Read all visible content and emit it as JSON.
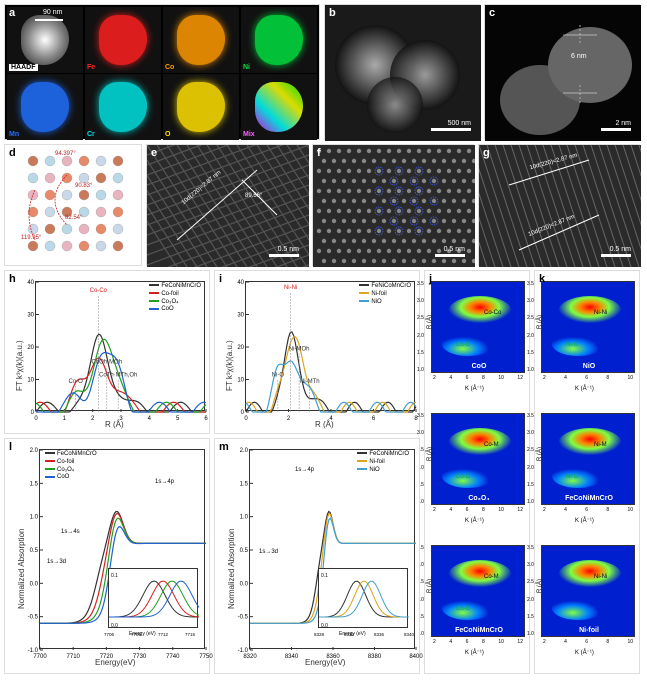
{
  "panels": {
    "a": {
      "label": "a",
      "scale": "90 nm",
      "sublabels": [
        "HAADF",
        "Fe",
        "Co",
        "Ni",
        "Mn",
        "Cr",
        "O",
        "Mix"
      ],
      "colors": [
        "#ffffff",
        "#ff2020",
        "#ff9a00",
        "#00e040",
        "#2070ff",
        "#00e0e0",
        "#ffe000",
        "#ff60ff"
      ]
    },
    "b": {
      "label": "b",
      "scale": "500 nm"
    },
    "c": {
      "label": "c",
      "scale": "2 nm",
      "annotation": "6 nm"
    },
    "d": {
      "label": "d",
      "angles": [
        "94.397°",
        "90.83°",
        "82.54°",
        "119.95°"
      ],
      "atom_colors": [
        "#c97a5a",
        "#b9d9e6",
        "#e8b4c0",
        "#e88a6a",
        "#c9d8e8"
      ]
    },
    "e": {
      "label": "e",
      "scale": "0.5 nm",
      "d_spacing": "10d(220)=2.87 nm",
      "angle": "89.56°"
    },
    "f": {
      "label": "f",
      "scale": "0.5 nm"
    },
    "g": {
      "label": "g",
      "scale": "0.5 nm",
      "d1": "10d(220)=2.87 nm",
      "d2": "10d(220)=2.87 nm"
    },
    "h": {
      "label": "h",
      "ylabel": "FT k³χ(k)(a.u.)",
      "xlabel": "R (Å)",
      "xlim": [
        0,
        6
      ],
      "ylim": [
        0,
        40
      ],
      "xtick_step": 1,
      "ytick_step": 10,
      "peaks": {
        "Co-Co": [
          2.2,
          36
        ],
        "Co-O": [
          1.4,
          8
        ],
        "CoOh·MOh": [
          2.5,
          14
        ],
        "CoTh·MTh,Oh": [
          2.9,
          10
        ]
      },
      "series": [
        {
          "name": "FeCoNiMnCrO",
          "color": "#333333"
        },
        {
          "name": "Co-foil",
          "color": "#d62020"
        },
        {
          "name": "Co₃O₄",
          "color": "#20a020"
        },
        {
          "name": "CoO",
          "color": "#2060d0"
        }
      ]
    },
    "i": {
      "label": "i",
      "ylabel": "FT k³χ(k)(a.u.)",
      "xlabel": "R (Å)",
      "xlim": [
        0,
        8
      ],
      "ylim": [
        0,
        40
      ],
      "xtick_step": 2,
      "ytick_step": 10,
      "peaks": {
        "Ni-Ni": [
          2.1,
          37
        ],
        "Ni-MOh": [
          2.5,
          18
        ],
        "Ni-O": [
          1.5,
          10
        ],
        "Ni-MTh": [
          3.0,
          8
        ]
      },
      "series": [
        {
          "name": "FeNiCoMnCrO",
          "color": "#333333"
        },
        {
          "name": "Ni-foil",
          "color": "#daa520"
        },
        {
          "name": "NiO",
          "color": "#40a0d0"
        }
      ]
    },
    "j": {
      "label": "j",
      "sub": [
        "CoO",
        "Co₃O₄",
        "FeCoNiMnCrO"
      ],
      "peak_labels": [
        [
          "Co-Co",
          "Co-O"
        ],
        [
          "Co-M",
          "Co-O"
        ],
        [
          "Co-M",
          "Co-O"
        ]
      ],
      "xlabel": "K (Å⁻¹)",
      "ylabel": "R (Å)",
      "xlim": [
        2,
        12
      ],
      "ylim": [
        1.0,
        3.5
      ]
    },
    "k": {
      "label": "k",
      "sub": [
        "NiO",
        "FeCoNiMnCrO",
        "Ni-foil"
      ],
      "peak_labels": [
        [
          "Ni-Ni",
          "Ni-O"
        ],
        [
          "Ni-M",
          "Ni-O"
        ],
        [
          "Ni-Ni",
          ""
        ]
      ],
      "xlabel": "K (Å⁻¹)",
      "ylabel": "R (Å)",
      "xlim": [
        2,
        10
      ],
      "ylim": [
        1.0,
        3.5
      ]
    },
    "l": {
      "label": "l",
      "ylabel": "Normalized Absorption",
      "xlabel": "Energy(eV)",
      "xlim": [
        7700,
        7750
      ],
      "ylim": [
        -1.0,
        2.0
      ],
      "xtick_step": 10,
      "ytick_step": 0.5,
      "anno": [
        "1s→3d",
        "1s→4s",
        "1s→4p",
        "A",
        "B"
      ],
      "inset": {
        "xlim": [
          7706,
          7716
        ],
        "ylim": [
          0.0,
          0.1
        ],
        "xlabel": "Energy (eV)",
        "ylabel": "Normalized Absorption"
      },
      "series": [
        {
          "name": "FeCoNiMnCrO",
          "color": "#333333"
        },
        {
          "name": "Co-foil",
          "color": "#d62020"
        },
        {
          "name": "Co₃O₄",
          "color": "#20a020"
        },
        {
          "name": "CoO",
          "color": "#2060d0"
        }
      ]
    },
    "m": {
      "label": "m",
      "ylabel": "Normalized Absorption",
      "xlabel": "Energy(eV)",
      "xlim": [
        8320,
        8400
      ],
      "ylim": [
        -1.0,
        2.0
      ],
      "xtick_step": 20,
      "ytick_step": 0.5,
      "anno": [
        "1s→3d",
        "1s→4p"
      ],
      "inset": {
        "xlim": [
          8328,
          8340
        ],
        "ylim": [
          0.0,
          0.1
        ],
        "xtick_step": 4,
        "xlabel": "Energy (eV)",
        "ylabel": "Normalized Absorption"
      },
      "series": [
        {
          "name": "FeCoNiMnCrO",
          "color": "#333333"
        },
        {
          "name": "Ni-foil",
          "color": "#daa520"
        },
        {
          "name": "NiO",
          "color": "#40a0d0"
        }
      ]
    }
  },
  "wavelet_colormap": [
    "#0020d0",
    "#0080ff",
    "#00d0a0",
    "#80ff40",
    "#ffff00",
    "#ff8000",
    "#ff0000"
  ]
}
